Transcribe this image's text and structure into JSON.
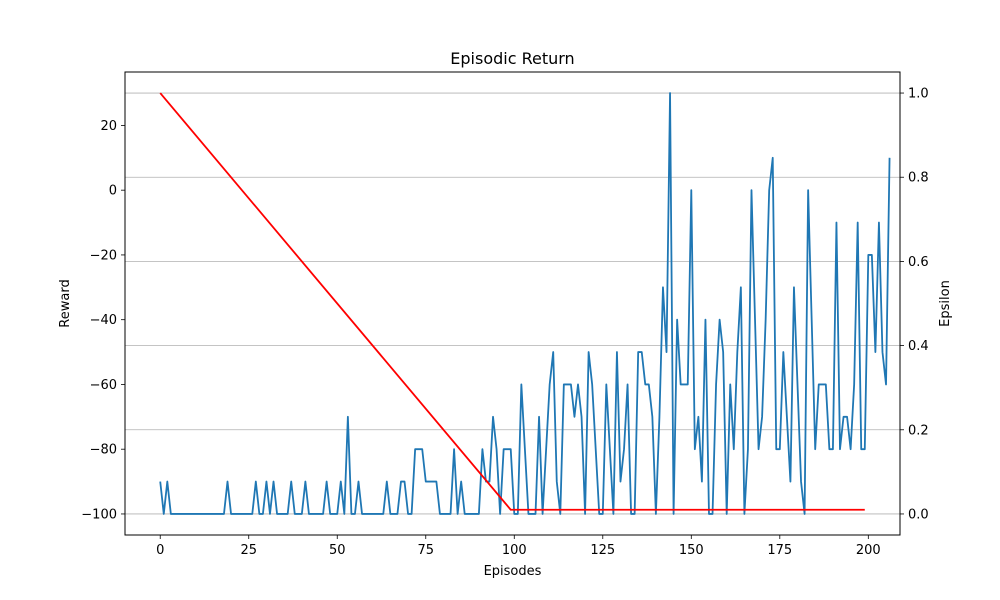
{
  "chart_data": {
    "type": "line",
    "title": "Episodic Return",
    "xlabel": "Episodes",
    "ylabel": "Reward",
    "y2label": "Epsilon",
    "xlim": [
      -9.95,
      208.95
    ],
    "ylim": [
      -106.5,
      36.5
    ],
    "y2lim": [
      -0.05,
      1.05
    ],
    "x_ticks": [
      0,
      25,
      50,
      75,
      100,
      125,
      150,
      175,
      200
    ],
    "y_ticks": [
      -100,
      -80,
      -60,
      -40,
      -20,
      0,
      20
    ],
    "y2_ticks": [
      0.0,
      0.2,
      0.4,
      0.6,
      0.8,
      1.0
    ],
    "grid": "right-axis horizontal",
    "series": [
      {
        "axis": "left",
        "color": "#1f77b4",
        "values": [
          -90,
          -100,
          -90,
          -100,
          -100,
          -100,
          -100,
          -100,
          -100,
          -100,
          -100,
          -100,
          -100,
          -100,
          -100,
          -100,
          -100,
          -100,
          -100,
          -90,
          -100,
          -100,
          -100,
          -100,
          -100,
          -100,
          -100,
          -90,
          -100,
          -100,
          -90,
          -100,
          -90,
          -100,
          -100,
          -100,
          -100,
          -90,
          -100,
          -100,
          -100,
          -90,
          -100,
          -100,
          -100,
          -100,
          -100,
          -90,
          -100,
          -100,
          -100,
          -90,
          -100,
          -70,
          -100,
          -100,
          -90,
          -100,
          -100,
          -100,
          -100,
          -100,
          -100,
          -100,
          -90,
          -100,
          -100,
          -100,
          -90,
          -90,
          -100,
          -100,
          -80,
          -80,
          -80,
          -90,
          -90,
          -90,
          -90,
          -100,
          -100,
          -100,
          -100,
          -80,
          -100,
          -90,
          -100,
          -100,
          -100,
          -100,
          -100,
          -80,
          -90,
          -90,
          -70,
          -80,
          -100,
          -80,
          -80,
          -80,
          -100,
          -100,
          -60,
          -80,
          -100,
          -100,
          -100,
          -70,
          -100,
          -80,
          -60,
          -50,
          -90,
          -100,
          -60,
          -60,
          -60,
          -70,
          -60,
          -70,
          -100,
          -50,
          -60,
          -80,
          -100,
          -100,
          -60,
          -80,
          -100,
          -50,
          -90,
          -80,
          -60,
          -100,
          -100,
          -50,
          -50,
          -60,
          -60,
          -70,
          -100,
          -70,
          -30,
          -50,
          30,
          -100,
          -40,
          -60,
          -60,
          -60,
          0,
          -80,
          -70,
          -90,
          -40,
          -100,
          -100,
          -60,
          -40,
          -50,
          -100,
          -60,
          -80,
          -50,
          -30,
          -100,
          -80,
          0,
          -40,
          -80,
          -70,
          -40,
          0,
          10,
          -80,
          -80,
          -50,
          -70,
          -90,
          -30,
          -60,
          -90,
          -100,
          0,
          -40,
          -80,
          -60,
          -60,
          -60,
          -80,
          -80,
          -10,
          -80,
          -70,
          -70,
          -80,
          -60,
          -10,
          -80,
          -80,
          -20,
          -20,
          -50,
          -10,
          -50,
          -60,
          10
        ]
      },
      {
        "axis": "right",
        "color": "#ff0000",
        "x": [
          0,
          99,
          199
        ],
        "values": [
          1.0,
          0.01,
          0.01
        ]
      }
    ]
  }
}
